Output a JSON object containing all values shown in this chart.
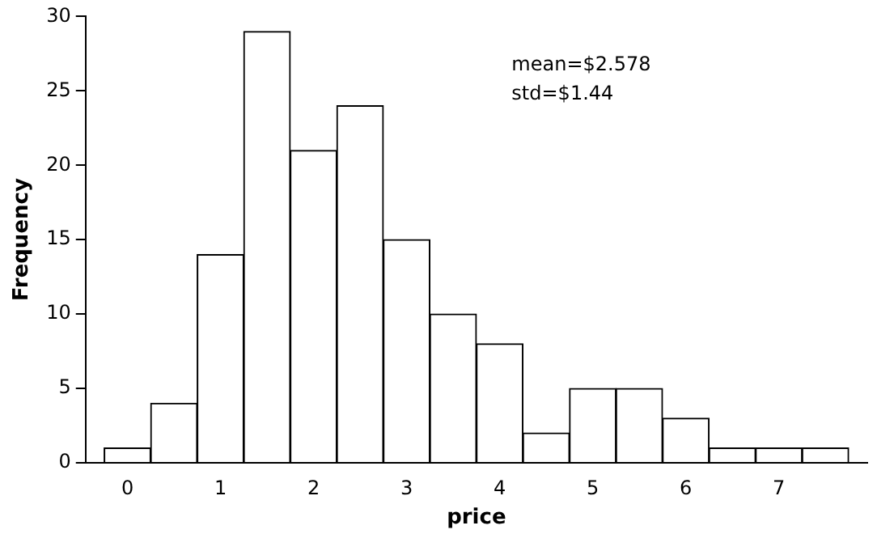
{
  "chart_data": {
    "type": "histogram",
    "xlabel": "price",
    "ylabel": "Frequency",
    "bins": [
      -0.25,
      0.25,
      0.75,
      1.25,
      1.75,
      2.25,
      2.75,
      3.25,
      3.75,
      4.25,
      4.75,
      5.25,
      5.75,
      6.25,
      6.75,
      7.25,
      7.75
    ],
    "values": [
      1,
      4,
      14,
      29,
      21,
      24,
      15,
      10,
      8,
      2,
      5,
      5,
      3,
      1,
      1,
      1
    ],
    "color": "#ffffff",
    "xlim": [
      -0.45,
      7.95
    ],
    "xticks": [
      0,
      1,
      2,
      3,
      4,
      5,
      6,
      7
    ],
    "ylim": [
      0,
      30
    ],
    "yticks": [
      0,
      5,
      10,
      15,
      20,
      25,
      30
    ],
    "annotations": [
      "mean=$2.578",
      "std=$1.44"
    ],
    "grid": false,
    "legend": false
  }
}
